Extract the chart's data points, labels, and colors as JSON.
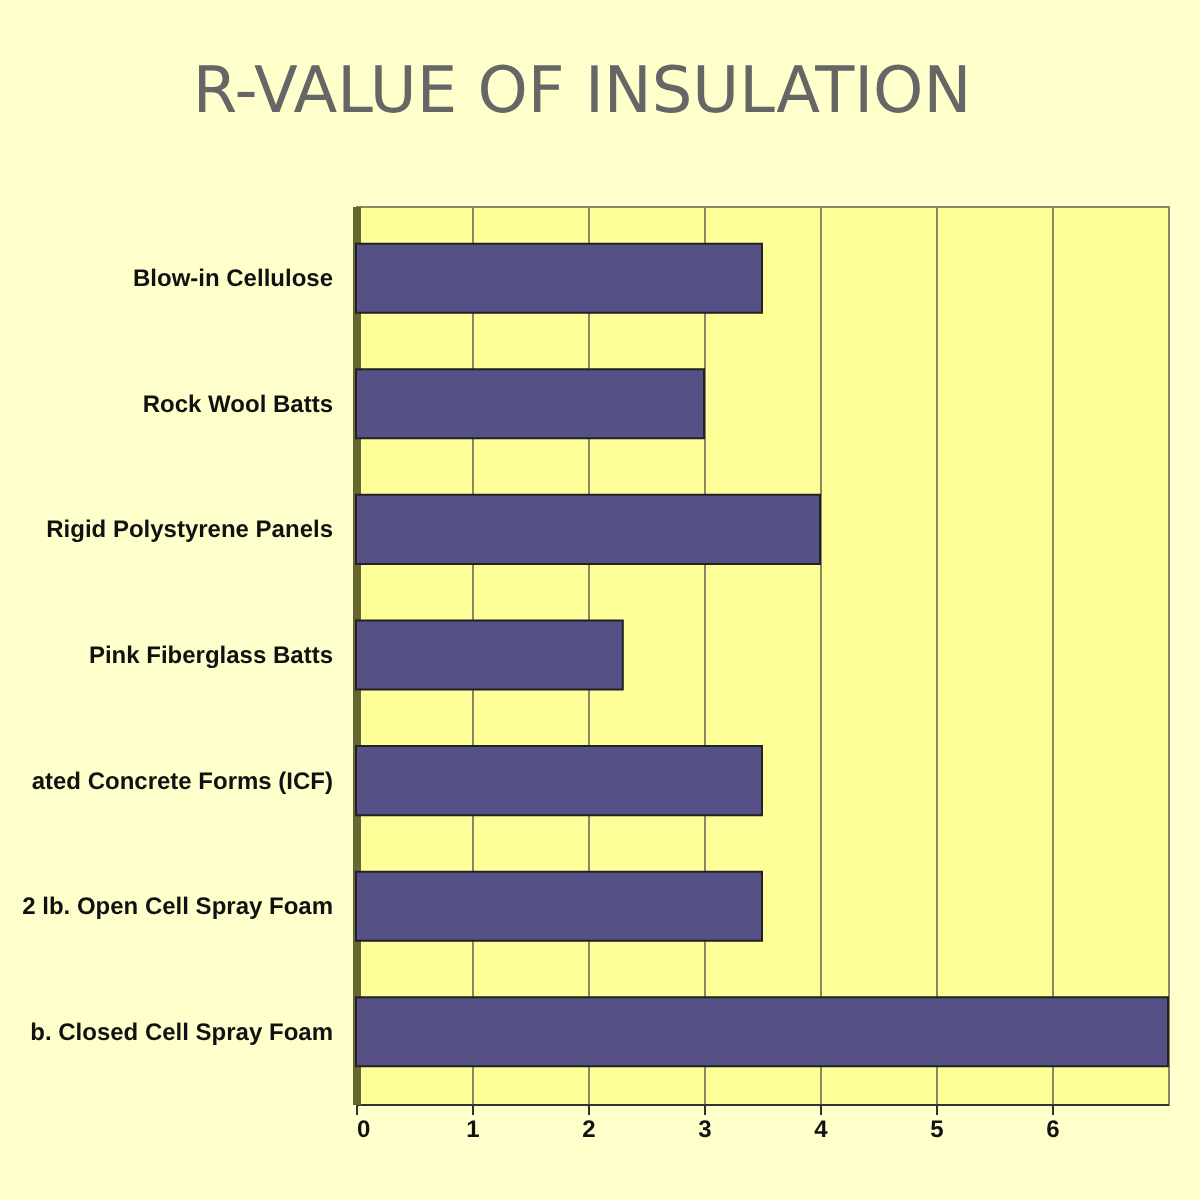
{
  "chart_data": {
    "type": "bar",
    "orientation": "horizontal",
    "title": "R-VALUE OF INSULATION",
    "categories": [
      "Blow-in Cellulose",
      "Rock Wool Batts",
      "Rigid Polystyrene Panels",
      "Pink Fiberglass Batts",
      "ated Concrete Forms (ICF)",
      "2 lb. Open Cell Spray Foam",
      "b. Closed Cell Spray Foam"
    ],
    "values": [
      3.5,
      3.0,
      4.0,
      2.3,
      3.5,
      3.5,
      7
    ],
    "color": "#555085",
    "xlim": [
      0,
      7
    ],
    "xticks": [
      0,
      1,
      2,
      3,
      4,
      5,
      6
    ],
    "grid": "x"
  }
}
